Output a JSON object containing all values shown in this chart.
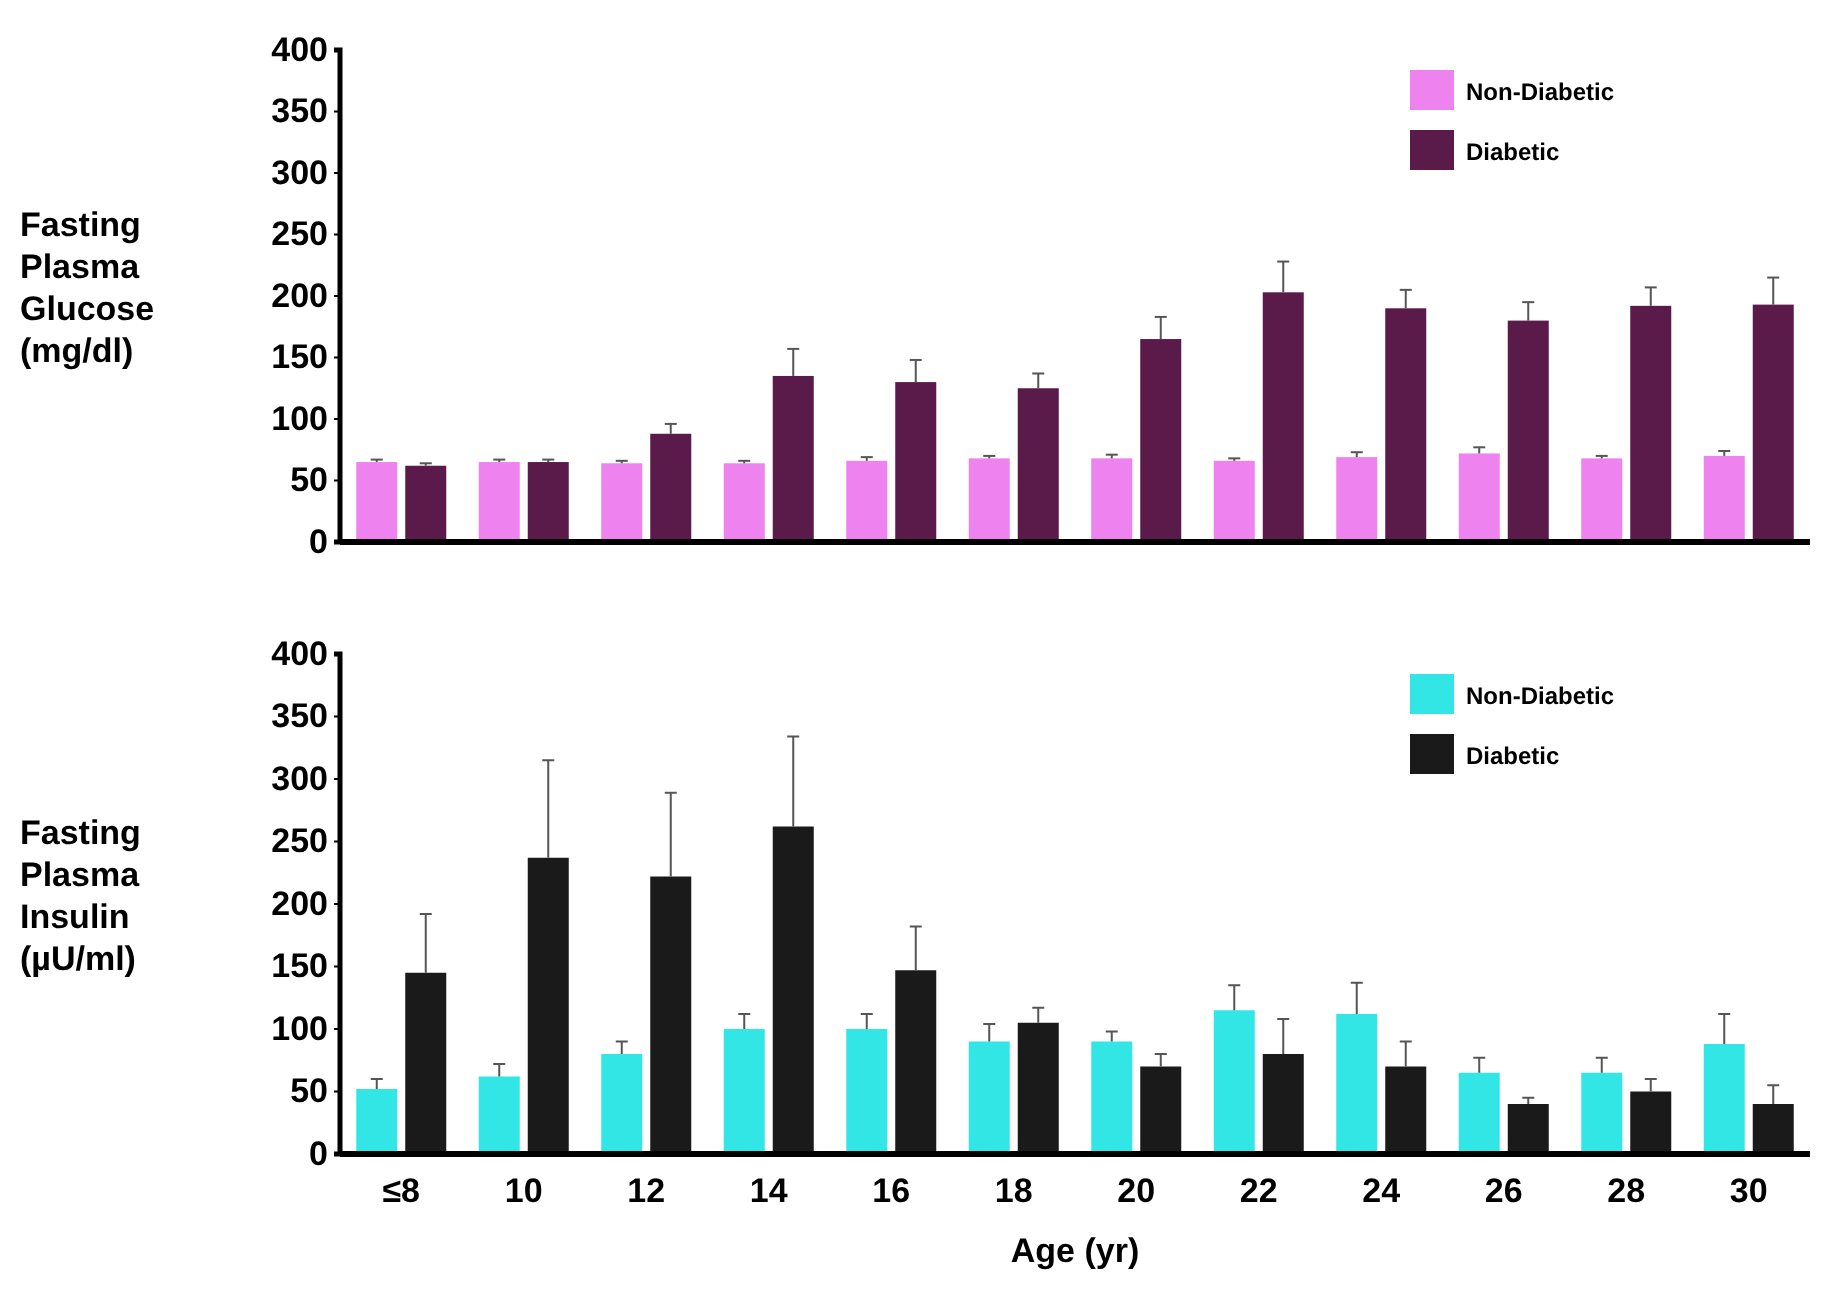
{
  "chart_data": [
    {
      "type": "bar",
      "ylabel": "Fasting Plasma Glucose (mg/dl)",
      "categories": [
        null,
        null,
        null,
        null,
        null,
        null,
        null,
        null,
        null,
        null,
        null,
        null
      ],
      "ylim": [
        0,
        400
      ],
      "yticks": [
        0,
        50,
        100,
        150,
        200,
        250,
        300,
        350,
        400
      ],
      "tick_labels": "y",
      "legend": "top right",
      "series": [
        {
          "name": "Non-Diabetic",
          "color": "#ee82ee",
          "values": [
            65,
            65,
            64,
            64,
            66,
            68,
            68,
            66,
            69,
            72,
            68,
            70
          ],
          "errors": [
            2,
            2,
            2,
            2,
            3,
            2,
            3,
            2,
            4,
            5,
            2,
            4
          ]
        },
        {
          "name": "Diabetic",
          "color": "#5a1a4a",
          "values": [
            62,
            65,
            88,
            135,
            130,
            125,
            165,
            203,
            190,
            180,
            192,
            193
          ],
          "errors": [
            2,
            2,
            8,
            22,
            18,
            12,
            18,
            25,
            15,
            15,
            15,
            22
          ]
        }
      ]
    },
    {
      "type": "bar",
      "ylabel": "Fasting Plasma Insulin (µU/ml)",
      "xlabel": "Age (yr)",
      "categories": [
        "≤8",
        "10",
        "12",
        "14",
        "16",
        "18",
        "20",
        "22",
        "24",
        "26",
        "28",
        "30"
      ],
      "ylim": [
        0,
        400
      ],
      "yticks": [
        0,
        50,
        100,
        150,
        200,
        250,
        300,
        350,
        400
      ],
      "legend": "top right",
      "series": [
        {
          "name": "Non-Diabetic",
          "color": "#33e6e6",
          "values": [
            52,
            62,
            80,
            100,
            100,
            90,
            90,
            115,
            112,
            65,
            65,
            88
          ],
          "errors": [
            8,
            10,
            10,
            12,
            12,
            14,
            8,
            20,
            25,
            12,
            12,
            24
          ]
        },
        {
          "name": "Diabetic",
          "color": "#1a1a1a",
          "values": [
            145,
            237,
            222,
            262,
            147,
            105,
            70,
            80,
            70,
            40,
            50,
            40
          ],
          "errors": [
            47,
            78,
            67,
            72,
            35,
            12,
            10,
            28,
            20,
            5,
            10,
            15
          ]
        }
      ]
    }
  ]
}
